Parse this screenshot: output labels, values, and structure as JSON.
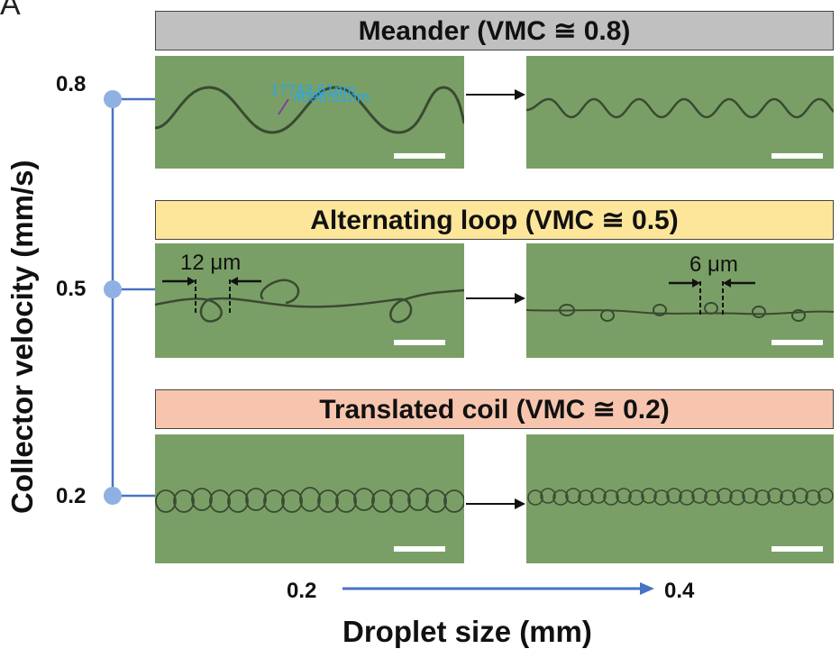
{
  "panel_label": "A",
  "y_axis": {
    "label": "Collector velocity (mm/s)",
    "ticks": [
      "0.8",
      "0.5",
      "0.2"
    ]
  },
  "x_axis": {
    "label": "Droplet size (mm)",
    "start": "0.2",
    "end": "0.4"
  },
  "rows": [
    {
      "title": "Meander (VMC ≅ 0.8)",
      "color": "#c0c0c0"
    },
    {
      "title": "Alternating loop (VMC ≅ 0.5)",
      "color": "#fde59a"
    },
    {
      "title": "Translated coil (VMC ≅ 0.2)",
      "color": "#f7c5ae"
    }
  ],
  "measurements": {
    "left": "12 μm",
    "right": "6 μm"
  },
  "overlay_annotations": [
    "17743.61nm",
    "4096.81nm"
  ],
  "colors": {
    "axis_line": "#4a72c4",
    "dot": "#8fb0e3",
    "image_bg": "#7a9f66",
    "fiber": "#3a4a32"
  }
}
